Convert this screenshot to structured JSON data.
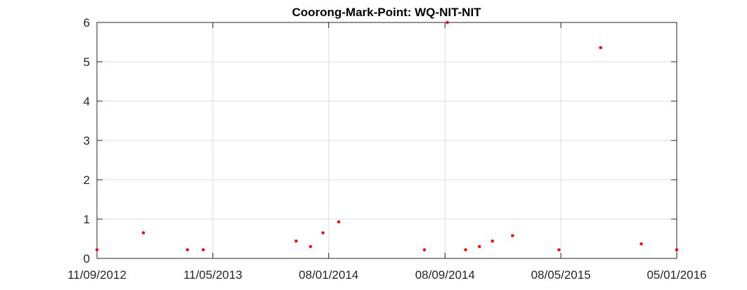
{
  "chart_data": {
    "type": "scatter",
    "title": "Coorong-Mark-Point: WQ-NIT-NIT",
    "xlabel": "",
    "ylabel": "",
    "x_axis": {
      "type": "date",
      "range": [
        "2012-09-11",
        "2016-01-05"
      ],
      "ticks": [
        {
          "date": "2012-09-11",
          "label": "11/09/2012"
        },
        {
          "date": "2013-05-11",
          "label": "11/05/2013"
        },
        {
          "date": "2014-01-08",
          "label": "08/01/2014"
        },
        {
          "date": "2014-09-08",
          "label": "08/09/2014"
        },
        {
          "date": "2015-05-08",
          "label": "08/05/2015"
        },
        {
          "date": "2016-01-05",
          "label": "05/01/2016"
        }
      ]
    },
    "y_axis": {
      "range": [
        0,
        6
      ],
      "ticks": [
        {
          "value": 0,
          "label": "0"
        },
        {
          "value": 1,
          "label": "1"
        },
        {
          "value": 2,
          "label": "2"
        },
        {
          "value": 3,
          "label": "3"
        },
        {
          "value": 4,
          "label": "4"
        },
        {
          "value": 5,
          "label": "5"
        },
        {
          "value": 6,
          "label": "6"
        }
      ]
    },
    "grid": true,
    "marker_color": "#ff0000",
    "series": [
      {
        "points": [
          {
            "x": "2012-09-11",
            "y": 0.22
          },
          {
            "x": "2012-12-17",
            "y": 0.65
          },
          {
            "x": "2013-03-19",
            "y": 0.22
          },
          {
            "x": "2013-04-21",
            "y": 0.22
          },
          {
            "x": "2013-11-01",
            "y": 0.44
          },
          {
            "x": "2013-12-01",
            "y": 0.3
          },
          {
            "x": "2013-12-27",
            "y": 0.65
          },
          {
            "x": "2014-01-29",
            "y": 0.93
          },
          {
            "x": "2014-07-27",
            "y": 0.22
          },
          {
            "x": "2014-09-13",
            "y": 6.0
          },
          {
            "x": "2014-10-21",
            "y": 0.22
          },
          {
            "x": "2014-11-19",
            "y": 0.3
          },
          {
            "x": "2014-12-16",
            "y": 0.44
          },
          {
            "x": "2015-01-27",
            "y": 0.58
          },
          {
            "x": "2015-05-04",
            "y": 0.22
          },
          {
            "x": "2015-07-30",
            "y": 5.36
          },
          {
            "x": "2015-10-23",
            "y": 0.37
          },
          {
            "x": "2016-01-05",
            "y": 0.22
          }
        ]
      }
    ]
  }
}
